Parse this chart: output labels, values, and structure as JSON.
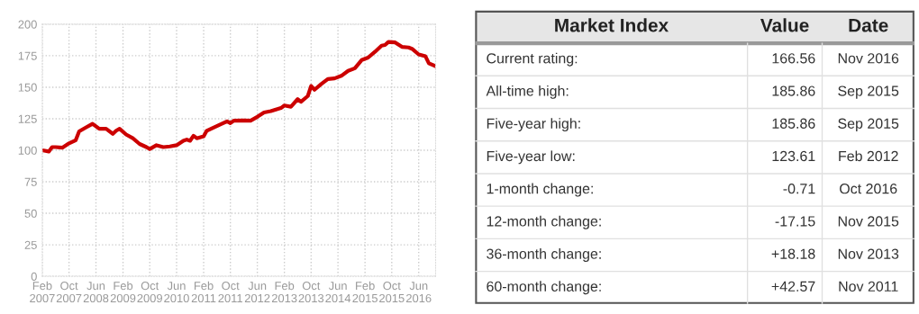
{
  "chart_data": [
    {
      "type": "line",
      "x": [
        "2007-02",
        "2007-04",
        "2007-05",
        "2007-06",
        "2007-08",
        "2007-10",
        "2007-12",
        "2008-01",
        "2008-03",
        "2008-05",
        "2008-07",
        "2008-09",
        "2008-11",
        "2008-12",
        "2009-01",
        "2009-03",
        "2009-05",
        "2009-07",
        "2009-09",
        "2009-10",
        "2009-12",
        "2010-02",
        "2010-04",
        "2010-06",
        "2010-08",
        "2010-09",
        "2010-10",
        "2010-11",
        "2010-12",
        "2011-02",
        "2011-03",
        "2011-05",
        "2011-07",
        "2011-09",
        "2011-10",
        "2011-11",
        "2012-02",
        "2012-04",
        "2012-06",
        "2012-08",
        "2012-10",
        "2013-01",
        "2013-02",
        "2013-04",
        "2013-06",
        "2013-07",
        "2013-09",
        "2013-10",
        "2013-11",
        "2014-01",
        "2014-03",
        "2014-05",
        "2014-07",
        "2014-09",
        "2014-11",
        "2015-01",
        "2015-03",
        "2015-05",
        "2015-07",
        "2015-08",
        "2015-09",
        "2015-11",
        "2016-01",
        "2016-03",
        "2016-04",
        "2016-06",
        "2016-08",
        "2016-09",
        "2016-11"
      ],
      "series": [
        {
          "color": "#cc0000",
          "values": [
            100,
            99,
            102.5,
            102.5,
            102,
            105.5,
            108,
            115,
            118,
            121,
            117,
            117,
            113,
            115.5,
            117,
            112.5,
            109.5,
            105,
            102.5,
            101,
            104,
            102.5,
            103,
            104,
            107.5,
            108.5,
            107.5,
            111.5,
            109.5,
            111,
            115.5,
            118,
            120.5,
            123,
            121.5,
            123.5,
            123.6,
            123.5,
            126.5,
            130,
            131,
            133.5,
            135.5,
            134.5,
            140.5,
            138.5,
            143,
            151,
            148,
            152.5,
            156.5,
            157,
            159,
            163,
            165,
            171.5,
            173.5,
            178,
            183,
            183.5,
            185.9,
            185.5,
            182,
            181.5,
            180.5,
            176,
            174.5,
            169,
            166.6
          ]
        }
      ],
      "xlim": [
        "2007-02",
        "2016-11"
      ],
      "xticks": [
        {
          "value": "2007-02",
          "label": "Feb\n2007"
        },
        {
          "value": "2007-10",
          "label": "Oct\n2007"
        },
        {
          "value": "2008-06",
          "label": "Jun\n2008"
        },
        {
          "value": "2009-02",
          "label": "Feb\n2009"
        },
        {
          "value": "2009-10",
          "label": "Oct\n2009"
        },
        {
          "value": "2010-06",
          "label": "Jun\n2010"
        },
        {
          "value": "2011-02",
          "label": "Feb\n2011"
        },
        {
          "value": "2011-10",
          "label": "Oct\n2011"
        },
        {
          "value": "2012-06",
          "label": "Jun\n2012"
        },
        {
          "value": "2013-02",
          "label": "Feb\n2013"
        },
        {
          "value": "2013-10",
          "label": "Oct\n2013"
        },
        {
          "value": "2014-06",
          "label": "Jun\n2014"
        },
        {
          "value": "2015-02",
          "label": "Feb\n2015"
        },
        {
          "value": "2015-10",
          "label": "Oct\n2015"
        },
        {
          "value": "2016-06",
          "label": "Jun\n2016"
        }
      ],
      "ylim": [
        0,
        200
      ],
      "yticks": [
        0,
        25,
        50,
        75,
        100,
        125,
        150,
        175,
        200
      ],
      "grid": true,
      "line_style": "solid",
      "marker": "none"
    },
    {
      "type": "other",
      "title": "Market Index",
      "categories": [
        "Current rating",
        "All-time high",
        "Five-year high",
        "Five-year low",
        "1-month change",
        "12-month change",
        "36-month change",
        "60-month change"
      ],
      "annotations": [
        ":",
        "Value",
        "Date",
        "166.56",
        "Nov 2016",
        "185.86",
        "Sep 2015",
        "185.86",
        "Sep 2015",
        "123.61",
        "Feb 2012",
        "-0.71",
        "Oct 2016",
        "-17.15",
        "Nov 2015",
        "+18.18",
        "Nov 2013",
        "+42.57",
        "Nov 2011"
      ]
    }
  ]
}
